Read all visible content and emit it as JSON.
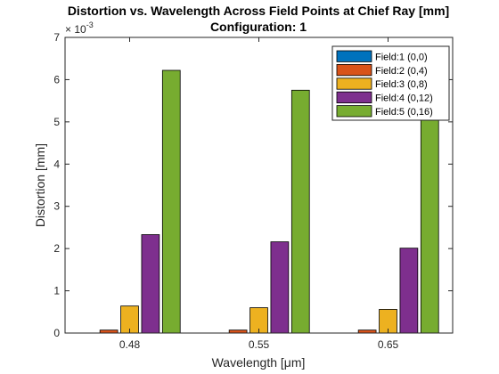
{
  "chart_data": {
    "type": "bar",
    "title": "Distortion vs. Wavelength Across Field Points at Chief Ray [mm]",
    "subtitle": "Configuration: 1",
    "xlabel": "Wavelength [μm]",
    "ylabel": "Distortion [mm]",
    "exponent_label": "× 10",
    "exponent_power": "-3",
    "categories": [
      "0.48",
      "0.55",
      "0.65"
    ],
    "y_ticks": [
      "0",
      "1",
      "2",
      "3",
      "4",
      "5",
      "6",
      "7"
    ],
    "ylim": [
      0,
      7
    ],
    "y_scale_note": "values in units of 10^-3 mm",
    "grid": false,
    "legend_position": "top-right",
    "series": [
      {
        "name": "Field:1 (0,0)",
        "color": "#0072BD",
        "values": [
          0.0,
          0.0,
          0.0
        ]
      },
      {
        "name": "Field:2 (0,4)",
        "color": "#D95319",
        "values": [
          0.07,
          0.07,
          0.07
        ]
      },
      {
        "name": "Field:3 (0,8)",
        "color": "#EDB120",
        "values": [
          0.64,
          0.6,
          0.56
        ]
      },
      {
        "name": "Field:4 (0,12)",
        "color": "#7E2F8E",
        "values": [
          2.33,
          2.16,
          2.01
        ]
      },
      {
        "name": "Field:5 (0,16)",
        "color": "#77AC30",
        "values": [
          6.22,
          5.75,
          5.3
        ]
      }
    ]
  }
}
